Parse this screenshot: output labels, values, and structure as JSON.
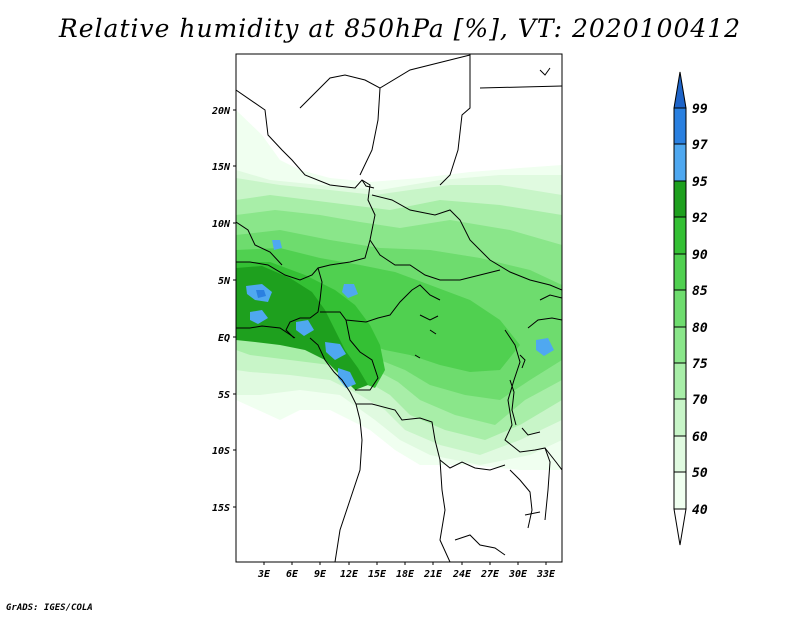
{
  "title": "Relative humidity at 850hPa [%], VT: 2020100412",
  "credit": "GrADS: IGES/COLA",
  "lat_labels": [
    "20N",
    "15N",
    "10N",
    "5N",
    "EQ",
    "5S",
    "10S",
    "15S"
  ],
  "lon_labels": [
    "3E",
    "6E",
    "9E",
    "12E",
    "15E",
    "18E",
    "21E",
    "24E",
    "27E",
    "30E",
    "33E"
  ],
  "colorbar": {
    "levels": [
      "99",
      "97",
      "95",
      "92",
      "90",
      "85",
      "80",
      "75",
      "70",
      "60",
      "50",
      "40"
    ],
    "colors": {
      "c40_50": "#f0fff0",
      "c50_60": "#e0fae0",
      "c60_70": "#c8f5c8",
      "c70_75": "#a8eea8",
      "c75_80": "#8ae68a",
      "c80_85": "#6edc6e",
      "c85_90": "#50d050",
      "c90_92": "#34c034",
      "c92_95": "#1ea01e",
      "c95_97": "#4fa8f0",
      "c97_99": "#2a80e0",
      "c99_up": "#1e64c8"
    }
  }
}
